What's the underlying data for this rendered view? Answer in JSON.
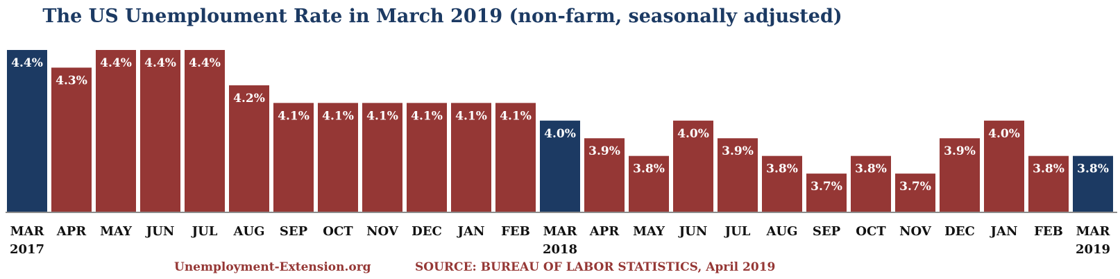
{
  "chart_data": {
    "type": "bar",
    "title": "The US Unemploument Rate in March 2019 (non-farm, seasonally adjusted)",
    "categories": [
      [
        "MAR",
        "2017"
      ],
      [
        "APR",
        ""
      ],
      [
        "MAY",
        ""
      ],
      [
        "JUN",
        ""
      ],
      [
        "JUL",
        ""
      ],
      [
        "AUG",
        ""
      ],
      [
        "SEP",
        ""
      ],
      [
        "OCT",
        ""
      ],
      [
        "NOV",
        ""
      ],
      [
        "DEC",
        ""
      ],
      [
        "JAN",
        ""
      ],
      [
        "FEB",
        ""
      ],
      [
        "MAR",
        "2018"
      ],
      [
        "APR",
        ""
      ],
      [
        "MAY",
        ""
      ],
      [
        "JUN",
        ""
      ],
      [
        "JUL",
        ""
      ],
      [
        "AUG",
        ""
      ],
      [
        "SEP",
        ""
      ],
      [
        "OCT",
        ""
      ],
      [
        "NOV",
        ""
      ],
      [
        "DEC",
        ""
      ],
      [
        "JAN",
        ""
      ],
      [
        "FEB",
        ""
      ],
      [
        "MAR",
        "2019"
      ]
    ],
    "values": [
      4.4,
      4.3,
      4.4,
      4.4,
      4.4,
      4.2,
      4.1,
      4.1,
      4.1,
      4.1,
      4.1,
      4.1,
      4.0,
      3.9,
      3.8,
      4.0,
      3.9,
      3.8,
      3.7,
      3.8,
      3.7,
      3.9,
      4.0,
      3.8,
      3.8
    ],
    "data_labels": [
      "4.4%",
      "4.3%",
      "4.4%",
      "4.4%",
      "4.4%",
      "4.2%",
      "4.1%",
      "4.1%",
      "4.1%",
      "4.1%",
      "4.1%",
      "4.1%",
      "4.0%",
      "3.9%",
      "3.8%",
      "4.0%",
      "3.9%",
      "3.8%",
      "3.7%",
      "3.8%",
      "3.7%",
      "3.9%",
      "4.0%",
      "3.8%",
      "3.8%"
    ],
    "highlight": [
      true,
      false,
      false,
      false,
      false,
      false,
      false,
      false,
      false,
      false,
      false,
      false,
      true,
      false,
      false,
      false,
      false,
      false,
      false,
      false,
      false,
      false,
      false,
      false,
      true
    ],
    "colors": {
      "bar": "#953735",
      "highlight": "#1c3a63"
    },
    "ylim": [
      3.5,
      4.4
    ],
    "grid": false,
    "legend": "none"
  },
  "footer": {
    "site": "Unemployment-Extension.org",
    "source": "SOURCE: BUREAU OF LABOR STATISTICS, April 2019"
  }
}
